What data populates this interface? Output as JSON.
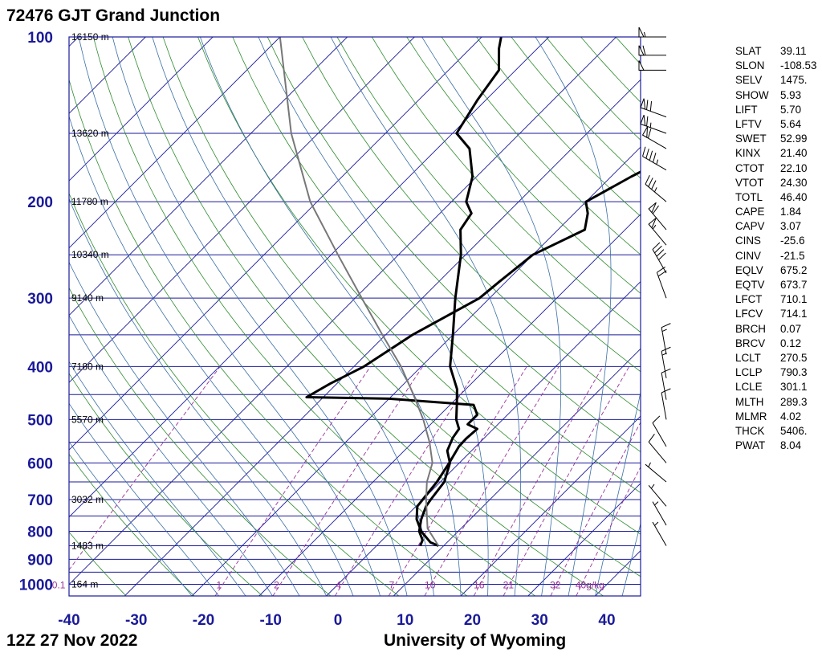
{
  "header": {
    "station": "72476 GJT Grand Junction",
    "time": "12Z 27 Nov 2022",
    "credit": "University of Wyoming"
  },
  "colors": {
    "isobar": "#1a1a99",
    "isotherm": "#1a1a99",
    "dry_adiabat": "#2e8b2e",
    "moist_adiabat": "#3a6ea5",
    "mixing_ratio": "#993399",
    "sounding": "#000000",
    "parcel": "#777777"
  },
  "chart_data": {
    "type": "line",
    "title": "72476 GJT Grand Junction",
    "xlim": [
      -40,
      45
    ],
    "pressure_range": [
      1050,
      100
    ],
    "x_ticks": [
      "-40",
      "-30",
      "-20",
      "-10",
      "0",
      "10",
      "20",
      "30",
      "40"
    ],
    "x_tick_values": [
      -40,
      -30,
      -20,
      -10,
      0,
      10,
      20,
      30,
      40
    ],
    "pressure_labels": [
      {
        "p": 100,
        "label": "100"
      },
      {
        "p": 200,
        "label": "200"
      },
      {
        "p": 300,
        "label": "300"
      },
      {
        "p": 400,
        "label": "400"
      },
      {
        "p": 500,
        "label": "500"
      },
      {
        "p": 600,
        "label": "600"
      },
      {
        "p": 700,
        "label": "700"
      },
      {
        "p": 800,
        "label": "800"
      },
      {
        "p": 900,
        "label": "900"
      },
      {
        "p": 1000,
        "label": "1000"
      }
    ],
    "isobars": [
      100,
      150,
      200,
      250,
      300,
      350,
      400,
      450,
      500,
      550,
      600,
      650,
      700,
      750,
      800,
      850,
      900,
      950,
      1000,
      1050
    ],
    "height_labels": [
      {
        "p": 100,
        "label": "16150 m"
      },
      {
        "p": 150,
        "label": "13620 m"
      },
      {
        "p": 200,
        "label": "11780 m"
      },
      {
        "p": 250,
        "label": "10340 m"
      },
      {
        "p": 300,
        "label": "9140 m"
      },
      {
        "p": 400,
        "label": "7180 m"
      },
      {
        "p": 500,
        "label": "5570 m"
      },
      {
        "p": 700,
        "label": "3032 m"
      },
      {
        "p": 850,
        "label": "1483 m"
      },
      {
        "p": 1000,
        "label": "164 m"
      }
    ],
    "mixing_ratio_labels": [
      "0.1",
      "1",
      "2",
      "4",
      "7",
      "10",
      "16",
      "21",
      "32",
      "40g/kg"
    ],
    "mixing_ratio_values": [
      0.1,
      1,
      2,
      4,
      7,
      10,
      16,
      21,
      32,
      40
    ],
    "series": [
      {
        "name": "temperature",
        "points": [
          [
            850,
            9.2
          ],
          [
            838,
            7.5
          ],
          [
            800,
            4.5
          ],
          [
            760,
            2.0
          ],
          [
            720,
            0.2
          ],
          [
            700,
            0.0
          ],
          [
            650,
            -0.5
          ],
          [
            600,
            -1.5
          ],
          [
            560,
            -2.5
          ],
          [
            542,
            -2.6
          ],
          [
            520,
            -2.4
          ],
          [
            510,
            -4.5
          ],
          [
            490,
            -4.5
          ],
          [
            470,
            -6.5
          ],
          [
            458,
            -20
          ],
          [
            455,
            -32.5
          ],
          [
            430,
            -31
          ],
          [
            400,
            -28.5
          ],
          [
            350,
            -26
          ],
          [
            300,
            -21.5
          ],
          [
            280,
            -21
          ],
          [
            250,
            -20
          ],
          [
            225,
            -16
          ],
          [
            210,
            -18
          ],
          [
            200,
            -20
          ],
          [
            180,
            -17
          ],
          [
            160,
            -13
          ],
          [
            150,
            -11
          ],
          [
            130,
            -8
          ],
          [
            115,
            -8
          ],
          [
            105,
            -5
          ],
          [
            100,
            -2
          ]
        ]
      },
      {
        "name": "dewpoint",
        "points": [
          [
            850,
            6.5
          ],
          [
            830,
            6.0
          ],
          [
            800,
            4.2
          ],
          [
            760,
            2.7
          ],
          [
            720,
            1.5
          ],
          [
            700,
            1.2
          ],
          [
            650,
            0.6
          ],
          [
            600,
            -1.4
          ],
          [
            570,
            -3.6
          ],
          [
            540,
            -4.7
          ],
          [
            520,
            -5.1
          ],
          [
            500,
            -6.9
          ],
          [
            470,
            -9.0
          ],
          [
            440,
            -11.3
          ],
          [
            400,
            -15.7
          ],
          [
            350,
            -20
          ],
          [
            300,
            -25.1
          ],
          [
            250,
            -30.7
          ],
          [
            225,
            -34.5
          ],
          [
            210,
            -35.3
          ],
          [
            200,
            -37.8
          ],
          [
            180,
            -40.6
          ],
          [
            160,
            -45.2
          ],
          [
            150,
            -49.4
          ],
          [
            130,
            -51.3
          ],
          [
            115,
            -52.5
          ],
          [
            105,
            -55.7
          ],
          [
            100,
            -57.1
          ]
        ]
      },
      {
        "name": "parcel",
        "points": [
          [
            850,
            9.2
          ],
          [
            790,
            5.0
          ],
          [
            700,
            0.5
          ],
          [
            650,
            -2.0
          ],
          [
            600,
            -4.0
          ],
          [
            550,
            -7.5
          ],
          [
            500,
            -11.8
          ],
          [
            450,
            -17.0
          ],
          [
            400,
            -23.0
          ],
          [
            350,
            -30.5
          ],
          [
            300,
            -39.0
          ],
          [
            250,
            -49.0
          ],
          [
            200,
            -61.0
          ],
          [
            150,
            -74.0
          ],
          [
            100,
            -90.0
          ]
        ]
      }
    ],
    "wind_barbs": [
      {
        "p": 100,
        "dir": 270,
        "speed": 55
      },
      {
        "p": 108,
        "dir": 270,
        "speed": 60
      },
      {
        "p": 115,
        "dir": 270,
        "speed": 50
      },
      {
        "p": 140,
        "dir": 290,
        "speed": 70
      },
      {
        "p": 150,
        "dir": 290,
        "speed": 65
      },
      {
        "p": 160,
        "dir": 300,
        "speed": 60
      },
      {
        "p": 175,
        "dir": 300,
        "speed": 45
      },
      {
        "p": 200,
        "dir": 310,
        "speed": 35
      },
      {
        "p": 225,
        "dir": 320,
        "speed": 60
      },
      {
        "p": 240,
        "dir": 320,
        "speed": 55
      },
      {
        "p": 270,
        "dir": 330,
        "speed": 40
      },
      {
        "p": 300,
        "dir": 340,
        "speed": 20
      },
      {
        "p": 380,
        "dir": 350,
        "speed": 15
      },
      {
        "p": 420,
        "dir": 350,
        "speed": 15
      },
      {
        "p": 460,
        "dir": 350,
        "speed": 10
      },
      {
        "p": 500,
        "dir": 350,
        "speed": 10
      },
      {
        "p": 560,
        "dir": 330,
        "speed": 10
      },
      {
        "p": 600,
        "dir": 320,
        "speed": 10
      },
      {
        "p": 650,
        "dir": 310,
        "speed": 5
      },
      {
        "p": 720,
        "dir": 320,
        "speed": 5
      },
      {
        "p": 780,
        "dir": 330,
        "speed": 5
      },
      {
        "p": 850,
        "dir": 330,
        "speed": 5
      }
    ]
  },
  "indices": [
    {
      "key": "SLAT",
      "value": "39.11"
    },
    {
      "key": "SLON",
      "value": "-108.53"
    },
    {
      "key": "SELV",
      "value": "1475."
    },
    {
      "key": "SHOW",
      "value": "5.93"
    },
    {
      "key": "LIFT",
      "value": "5.70"
    },
    {
      "key": "LFTV",
      "value": "5.64"
    },
    {
      "key": "SWET",
      "value": "52.99"
    },
    {
      "key": "KINX",
      "value": "21.40"
    },
    {
      "key": "CTOT",
      "value": "22.10"
    },
    {
      "key": "VTOT",
      "value": "24.30"
    },
    {
      "key": "TOTL",
      "value": "46.40"
    },
    {
      "key": "CAPE",
      "value": "1.84"
    },
    {
      "key": "CAPV",
      "value": "3.07"
    },
    {
      "key": "CINS",
      "value": "-25.6"
    },
    {
      "key": "CINV",
      "value": "-21.5"
    },
    {
      "key": "EQLV",
      "value": "675.2"
    },
    {
      "key": "EQTV",
      "value": "673.7"
    },
    {
      "key": "LFCT",
      "value": "710.1"
    },
    {
      "key": "LFCV",
      "value": "714.1"
    },
    {
      "key": "BRCH",
      "value": "0.07"
    },
    {
      "key": "BRCV",
      "value": "0.12"
    },
    {
      "key": "LCLT",
      "value": "270.5"
    },
    {
      "key": "LCLP",
      "value": "790.3"
    },
    {
      "key": "LCLE",
      "value": "301.1"
    },
    {
      "key": "MLTH",
      "value": "289.3"
    },
    {
      "key": "MLMR",
      "value": "4.02"
    },
    {
      "key": "THCK",
      "value": "5406."
    },
    {
      "key": "PWAT",
      "value": "8.04"
    }
  ]
}
